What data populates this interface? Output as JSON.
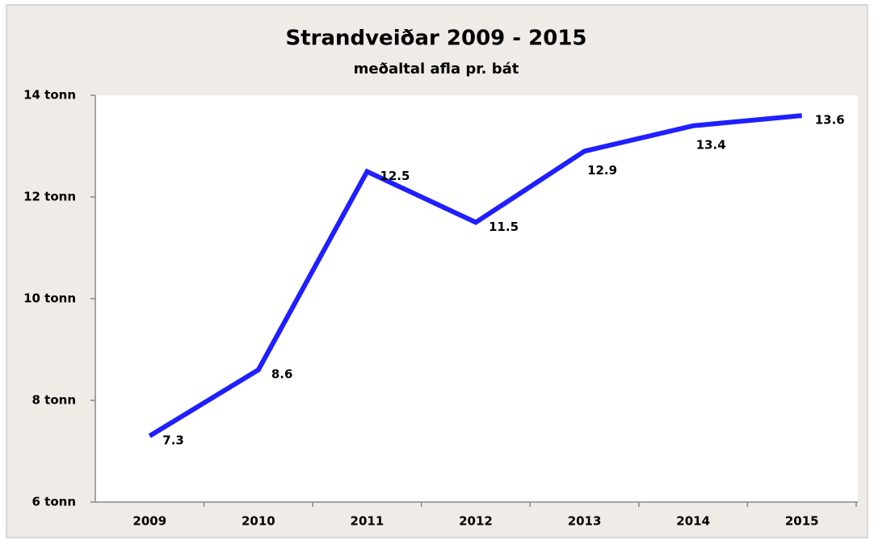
{
  "chart_data": {
    "type": "line",
    "title": "Strandveiðar 2009 - 2015",
    "subtitle": "meðaltal afla pr. bát",
    "categories": [
      "2009",
      "2010",
      "2011",
      "2012",
      "2013",
      "2014",
      "2015"
    ],
    "values": [
      7.3,
      8.6,
      12.5,
      11.5,
      12.9,
      13.4,
      13.6
    ],
    "color": "#1f1fff",
    "ylim": [
      6,
      14
    ],
    "yticks": [
      {
        "value": 6,
        "label": "6 tonn"
      },
      {
        "value": 8,
        "label": "8 tonn"
      },
      {
        "value": 10,
        "label": "10 tonn"
      },
      {
        "value": 12,
        "label": "12 tonn"
      },
      {
        "value": 14,
        "label": "14 tonn"
      }
    ],
    "grid": false
  }
}
